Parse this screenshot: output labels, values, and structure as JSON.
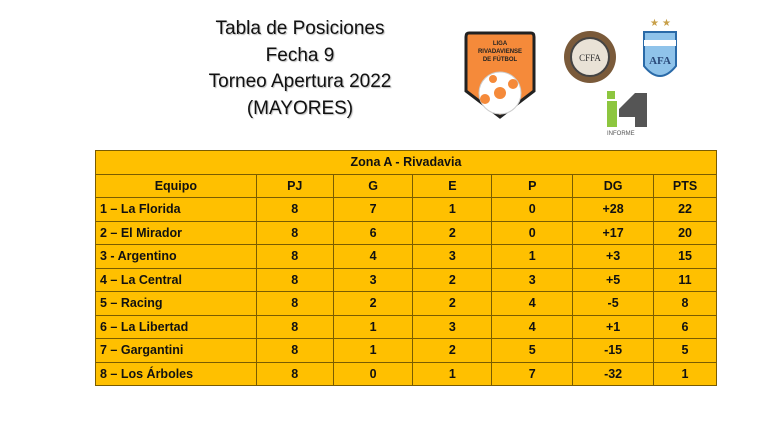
{
  "title": {
    "line1": "Tabla de Posiciones",
    "line2": "Fecha 9",
    "line3": "Torneo Apertura 2022",
    "line4": "(MAYORES)"
  },
  "logos": {
    "liga": "LIGA RIVADAVIENSE DE FÚTBOL",
    "cfa": "CFFA",
    "afa": "AFA",
    "informe": "INFORME"
  },
  "table": {
    "zone": "Zona A -  Rivadavia",
    "headers": [
      "Equipo",
      "PJ",
      "G",
      "E",
      "P",
      "DG",
      "PTS"
    ],
    "rows": [
      [
        "1 – La Florida",
        "8",
        "7",
        "1",
        "0",
        "+28",
        "22"
      ],
      [
        "2 – El Mirador",
        "8",
        "6",
        "2",
        "0",
        "+17",
        "20"
      ],
      [
        "3 - Argentino",
        "8",
        "4",
        "3",
        "1",
        "+3",
        "15"
      ],
      [
        "4 – La Central",
        "8",
        "3",
        "2",
        "3",
        "+5",
        "11"
      ],
      [
        "5 – Racing",
        "8",
        "2",
        "2",
        "4",
        "-5",
        "8"
      ],
      [
        "6 – La Libertad",
        "8",
        "1",
        "3",
        "4",
        "+1",
        "6"
      ],
      [
        "7 – Gargantini",
        "8",
        "1",
        "2",
        "5",
        "-15",
        "5"
      ],
      [
        "8 – Los Árboles",
        "8",
        "0",
        "1",
        "7",
        "-32",
        "1"
      ]
    ]
  },
  "colors": {
    "table_bg": "#ffc000",
    "liga_orange": "#f58a3a"
  }
}
